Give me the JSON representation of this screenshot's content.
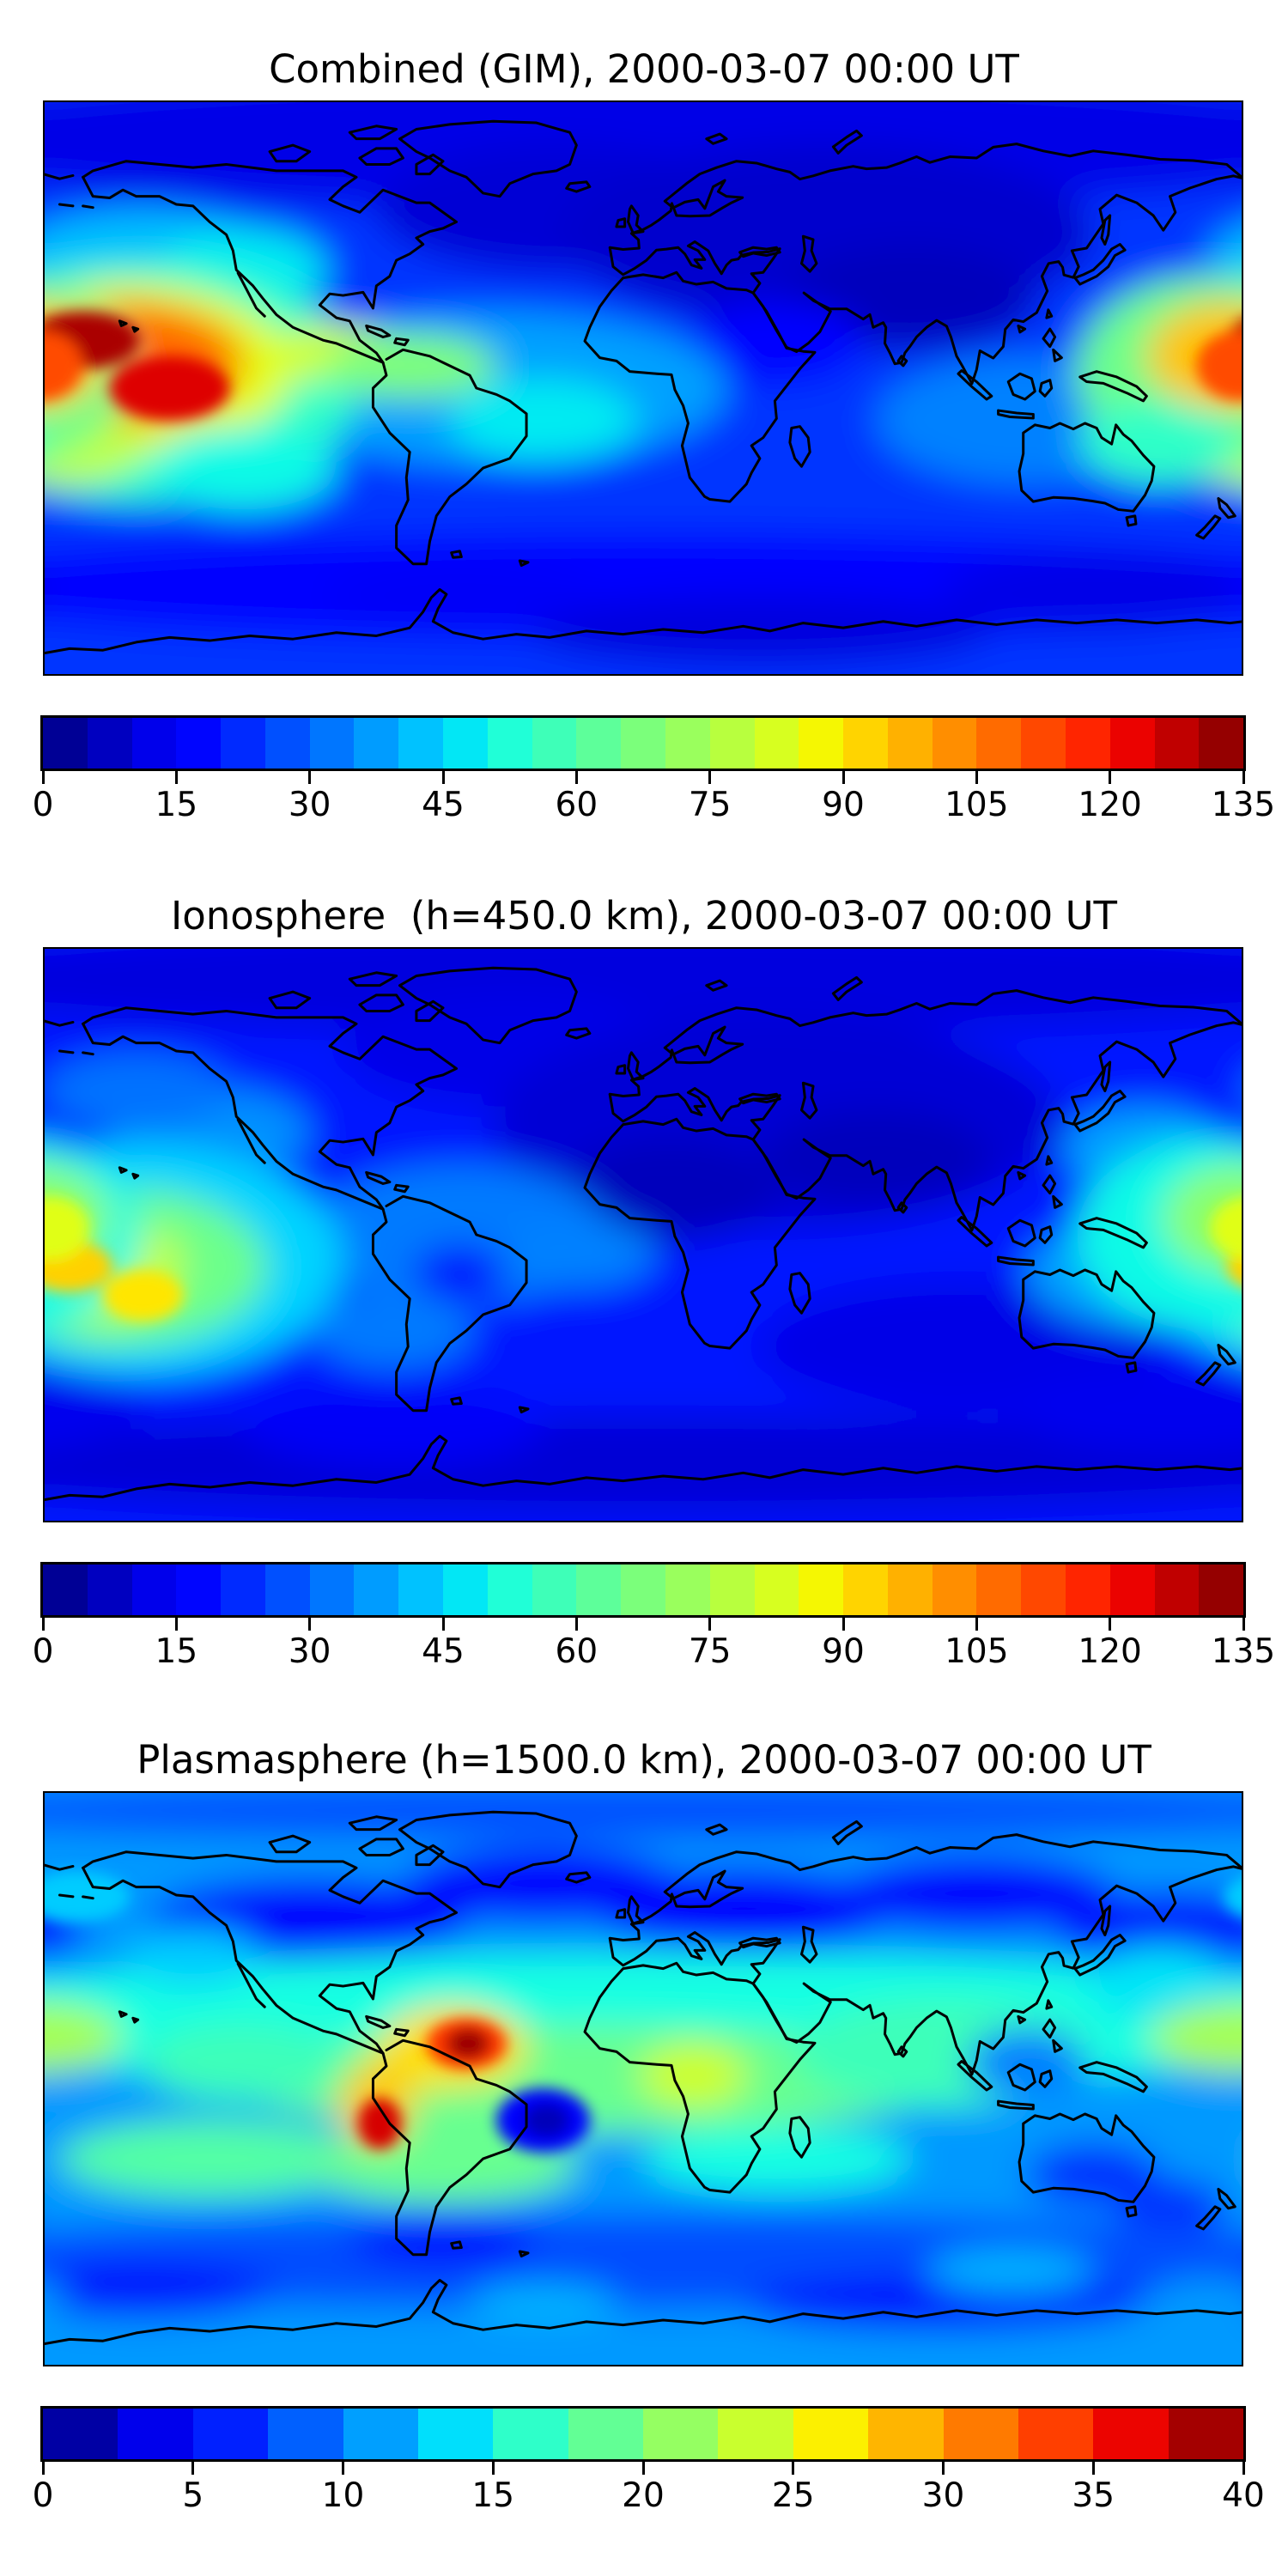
{
  "figure": {
    "background": "#ffffff",
    "coastline_color": "#000000",
    "frame_color": "#000000",
    "colormap_endpoints": {
      "low": "#000080",
      "high": "#800000"
    }
  },
  "chart_data": [
    {
      "type": "filled_contour_map",
      "title": "Combined (GIM), 2000-03-07 00:00 UT",
      "projection": "equirectangular lon -180..180, lat -90..90",
      "colormap": "jet",
      "colorbar": {
        "vmin": 0,
        "vmax": 135,
        "ticks": [
          0,
          15,
          30,
          45,
          60,
          75,
          90,
          105,
          120,
          135
        ],
        "segments": 27,
        "orientation": "horizontal"
      },
      "base_value": 24,
      "features_format": [
        "lon",
        "lat",
        "rx_deg",
        "ry_deg",
        "value",
        "sharp"
      ],
      "features": [
        [
          0,
          78,
          230,
          22,
          12,
          0
        ],
        [
          -25,
          56,
          55,
          20,
          10,
          0
        ],
        [
          55,
          48,
          80,
          28,
          9,
          0
        ],
        [
          80,
          28,
          38,
          16,
          7,
          0
        ],
        [
          40,
          14,
          26,
          13,
          16,
          0
        ],
        [
          0,
          -62,
          230,
          17,
          17,
          0
        ],
        [
          35,
          -76,
          70,
          11,
          11,
          0
        ],
        [
          135,
          -64,
          45,
          12,
          12,
          0
        ],
        [
          -55,
          -65,
          40,
          11,
          14,
          0
        ],
        [
          -45,
          0,
          70,
          24,
          38,
          0
        ],
        [
          115,
          -10,
          45,
          20,
          34,
          0
        ],
        [
          -150,
          40,
          40,
          16,
          42,
          0
        ],
        [
          -120,
          37,
          25,
          13,
          48,
          0
        ],
        [
          -150,
          2,
          65,
          38,
          55,
          0
        ],
        [
          -155,
          6,
          50,
          27,
          85,
          0
        ],
        [
          -158,
          8,
          38,
          19,
          108,
          0
        ],
        [
          -168,
          15,
          17,
          9,
          130,
          1
        ],
        [
          -142,
          0,
          18,
          10,
          124,
          1
        ],
        [
          -178,
          -18,
          28,
          12,
          80,
          0
        ],
        [
          168,
          5,
          38,
          30,
          65,
          0
        ],
        [
          175,
          10,
          24,
          17,
          95,
          0
        ],
        [
          179,
          7,
          13,
          11,
          112,
          1
        ],
        [
          -92,
          11,
          20,
          9,
          82,
          0
        ],
        [
          -70,
          7,
          26,
          10,
          68,
          0
        ],
        [
          -30,
          -10,
          28,
          13,
          48,
          0
        ],
        [
          155,
          -17,
          24,
          13,
          55,
          0
        ],
        [
          -120,
          -25,
          28,
          13,
          50,
          0
        ]
      ]
    },
    {
      "type": "filled_contour_map",
      "title": "Ionosphere  (h=450.0 km), 2000-03-07 00:00 UT",
      "projection": "equirectangular lon -180..180, lat -90..90",
      "colormap": "jet",
      "colorbar": {
        "vmin": 0,
        "vmax": 135,
        "ticks": [
          0,
          15,
          30,
          45,
          60,
          75,
          90,
          105,
          120,
          135
        ],
        "segments": 27,
        "orientation": "horizontal"
      },
      "base_value": 20,
      "features_format": [
        "lon",
        "lat",
        "rx_deg",
        "ry_deg",
        "value",
        "sharp"
      ],
      "features": [
        [
          0,
          80,
          230,
          17,
          11,
          0
        ],
        [
          -40,
          58,
          50,
          18,
          12,
          0
        ],
        [
          40,
          35,
          85,
          33,
          10,
          0
        ],
        [
          8,
          14,
          32,
          16,
          7,
          0
        ],
        [
          70,
          24,
          34,
          15,
          7,
          0
        ],
        [
          95,
          -35,
          60,
          20,
          12,
          0
        ],
        [
          0,
          -72,
          230,
          15,
          10,
          0
        ],
        [
          160,
          -55,
          50,
          13,
          13,
          0
        ],
        [
          -75,
          -60,
          45,
          12,
          14,
          0
        ],
        [
          -55,
          0,
          45,
          22,
          33,
          0
        ],
        [
          150,
          -12,
          35,
          17,
          38,
          0
        ],
        [
          -20,
          -6,
          24,
          11,
          34,
          0
        ],
        [
          -130,
          32,
          30,
          14,
          36,
          0
        ],
        [
          -152,
          45,
          28,
          12,
          32,
          0
        ],
        [
          150,
          27,
          24,
          13,
          38,
          0
        ],
        [
          -150,
          -8,
          60,
          36,
          45,
          0
        ],
        [
          -158,
          -10,
          45,
          25,
          65,
          0
        ],
        [
          -166,
          -10,
          28,
          17,
          80,
          0
        ],
        [
          -172,
          -10,
          13,
          8,
          93,
          1
        ],
        [
          -150,
          -19,
          12,
          8,
          90,
          1
        ],
        [
          170,
          0,
          40,
          30,
          50,
          0
        ],
        [
          178,
          5,
          22,
          17,
          70,
          0
        ],
        [
          182,
          2,
          12,
          10,
          84,
          1
        ],
        [
          -55,
          -12,
          14,
          9,
          20,
          0
        ],
        [
          -75,
          -30,
          24,
          12,
          33,
          0
        ]
      ]
    },
    {
      "type": "filled_contour_map",
      "title": "Plasmasphere (h=1500.0 km), 2000-03-07 00:00 UT",
      "projection": "equirectangular lon -180..180, lat -90..90",
      "colormap": "jet",
      "colorbar": {
        "vmin": 0,
        "vmax": 40,
        "ticks": [
          0,
          5,
          10,
          15,
          20,
          25,
          30,
          35,
          40
        ],
        "segments": 16,
        "orientation": "horizontal"
      },
      "base_value": 11,
      "features_format": [
        "lon",
        "lat",
        "rx_deg",
        "ry_deg",
        "value",
        "sharp"
      ],
      "features": [
        [
          0,
          84,
          230,
          9,
          8,
          0
        ],
        [
          -100,
          50,
          48,
          13,
          5,
          0
        ],
        [
          -30,
          61,
          42,
          12,
          5,
          0
        ],
        [
          30,
          53,
          45,
          13,
          5,
          0
        ],
        [
          100,
          58,
          42,
          12,
          5,
          0
        ],
        [
          158,
          47,
          35,
          12,
          6,
          0
        ],
        [
          -170,
          57,
          16,
          8,
          13,
          1
        ],
        [
          0,
          18,
          230,
          21,
          15,
          0
        ],
        [
          -135,
          38,
          20,
          9,
          13,
          0
        ],
        [
          155,
          30,
          22,
          11,
          14,
          0
        ],
        [
          -15,
          0,
          110,
          17,
          19,
          0
        ],
        [
          90,
          8,
          45,
          17,
          17,
          0
        ],
        [
          115,
          5,
          18,
          11,
          10,
          0
        ],
        [
          -120,
          5,
          30,
          12,
          17,
          0
        ],
        [
          -130,
          -25,
          45,
          12,
          18,
          0
        ],
        [
          40,
          -25,
          40,
          10,
          15,
          0
        ],
        [
          -60,
          -27,
          40,
          12,
          19,
          0
        ],
        [
          178,
          13,
          26,
          11,
          22,
          0
        ],
        [
          -68,
          4,
          15,
          8,
          25,
          0
        ],
        [
          -57,
          10,
          22,
          13,
          27,
          0
        ],
        [
          -53,
          11,
          12,
          8,
          34,
          1
        ],
        [
          -52.5,
          11,
          6.5,
          5,
          39,
          1
        ],
        [
          -80,
          -8,
          11,
          13,
          28,
          0
        ],
        [
          -79,
          -14,
          6.5,
          8,
          37,
          1
        ],
        [
          15,
          1,
          16,
          10,
          24,
          0
        ],
        [
          -30,
          -13,
          14,
          10,
          5,
          1
        ],
        [
          -29,
          -13,
          7,
          5.5,
          2,
          1
        ],
        [
          135,
          -30,
          20,
          10,
          7,
          0
        ],
        [
          158,
          -40,
          17,
          9,
          7,
          0
        ],
        [
          0,
          -57,
          230,
          15,
          8,
          0
        ],
        [
          -60,
          -50,
          28,
          9,
          6,
          0
        ],
        [
          90,
          -70,
          60,
          9,
          6,
          0
        ],
        [
          -150,
          -66,
          40,
          9,
          6,
          0
        ],
        [
          -30,
          -70,
          22,
          6,
          12,
          0
        ],
        [
          110,
          -60,
          25,
          7,
          12,
          0
        ],
        [
          170,
          -68,
          17,
          6,
          11,
          0
        ]
      ]
    }
  ]
}
